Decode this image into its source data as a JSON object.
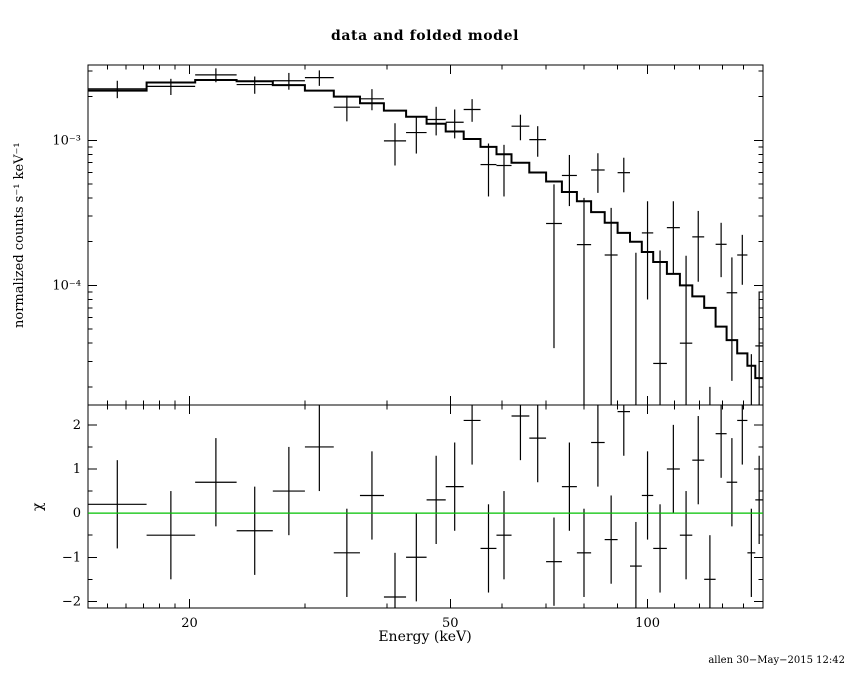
{
  "page": {
    "footer": "allen 30−May−2015 12:42"
  },
  "chart_data": {
    "type": "scatter",
    "title": "data and folded model",
    "xlabel": "Energy (keV)",
    "xscale": "log",
    "xlim": [
      14,
      150
    ],
    "xticks_major": [
      20,
      50,
      100
    ],
    "xtick_labels": [
      "20",
      "50",
      "100"
    ],
    "xticks_minor": [
      15,
      16,
      17,
      18,
      19,
      30,
      40,
      60,
      70,
      80,
      90,
      110,
      120,
      130,
      140,
      150
    ],
    "legend": "none",
    "grid": false,
    "panels": [
      {
        "name": "spectrum",
        "ylabel": "normalized counts s⁻¹ keV⁻¹",
        "yscale": "log",
        "ylim": [
          1.5e-05,
          0.0033
        ],
        "yticks_major": [
          0.0001,
          0.001
        ],
        "ytick_labels": [
          "10⁻⁴",
          "10⁻³"
        ],
        "yticks_minor": [
          2e-05,
          3e-05,
          4e-05,
          5e-05,
          6e-05,
          7e-05,
          8e-05,
          9e-05,
          0.0002,
          0.0003,
          0.0004,
          0.0005,
          0.0006,
          0.0007,
          0.0008,
          0.0009,
          0.002,
          0.003
        ],
        "bins_kev": [
          14,
          17.2,
          20.4,
          23.6,
          26.8,
          30,
          33.2,
          36.4,
          39.6,
          42.8,
          46,
          49.2,
          52.4,
          55.6,
          58.8,
          62,
          66,
          70,
          74,
          78,
          82,
          86,
          90,
          94,
          98,
          102,
          107,
          112,
          117,
          122,
          127,
          132,
          137,
          142,
          146,
          150
        ],
        "model": [
          0.0022,
          0.0025,
          0.0026,
          0.00255,
          0.0024,
          0.0022,
          0.002,
          0.0018,
          0.0016,
          0.00145,
          0.0013,
          0.00115,
          0.00102,
          0.0009,
          0.0008,
          0.0007,
          0.0006,
          0.00052,
          0.00044,
          0.00038,
          0.00032,
          0.00027,
          0.00023,
          0.0002,
          0.00017,
          0.000145,
          0.00012,
          0.0001,
          8.4e-05,
          7e-05,
          5.2e-05,
          4.2e-05,
          3.4e-05,
          2.8e-05,
          2.3e-05
        ],
        "data": [
          0.00226,
          0.00235,
          0.00282,
          0.00242,
          0.00257,
          0.0027,
          0.00169,
          0.00193,
          0.00099,
          0.00113,
          0.00139,
          0.00133,
          0.00163,
          0.00068,
          0.00067,
          0.00125,
          0.00101,
          0.000267,
          0.000572,
          0.000191,
          0.000624,
          0.000162,
          0.000598,
          8e-06,
          0.00023,
          2.9e-05,
          0.00025,
          4e-05,
          0.000216,
          -8e-05,
          0.000192,
          8.9e-05,
          0.000162,
          -2.24e-05,
          3.83e-05
        ],
        "data_err": [
          0.00031,
          0.0003,
          0.00031,
          0.00033,
          0.00034,
          0.00033,
          0.00034,
          0.00032,
          0.00032,
          0.00032,
          0.00031,
          0.0003,
          0.00029,
          0.00027,
          0.00026,
          0.00025,
          0.00024,
          0.00023,
          0.00022,
          0.00021,
          0.00019,
          0.00018,
          0.00016,
          0.00016,
          0.00015,
          0.000145,
          0.00013,
          0.00012,
          0.00011,
          0.0001,
          7.8e-05,
          6.7e-05,
          6.1e-05,
          5.6e-05,
          5.1e-05
        ],
        "line_color": "#000000",
        "point_color": "#000000"
      },
      {
        "name": "residuals",
        "ylabel": "χ",
        "yscale": "linear",
        "ylim": [
          -2.15,
          2.45
        ],
        "yticks": [
          -2,
          -1,
          0,
          1,
          2
        ],
        "ytick_labels": [
          "−2",
          "−1",
          "0",
          "1",
          "2"
        ],
        "yticks_minor": [
          -1.5,
          -0.5,
          0.5,
          1.5
        ],
        "values": [
          0.2,
          -0.5,
          0.7,
          -0.4,
          0.5,
          1.5,
          -0.9,
          0.4,
          -1.9,
          -1.0,
          0.3,
          0.6,
          2.1,
          -0.8,
          -0.5,
          2.2,
          1.7,
          -1.1,
          0.6,
          -0.9,
          1.6,
          -0.6,
          2.3,
          -1.2,
          0.4,
          -0.8,
          1.0,
          -0.5,
          1.2,
          -1.5,
          1.8,
          0.7,
          2.1,
          -0.9,
          0.3
        ],
        "err": 1,
        "zero_line_color": "#00c000"
      }
    ]
  }
}
